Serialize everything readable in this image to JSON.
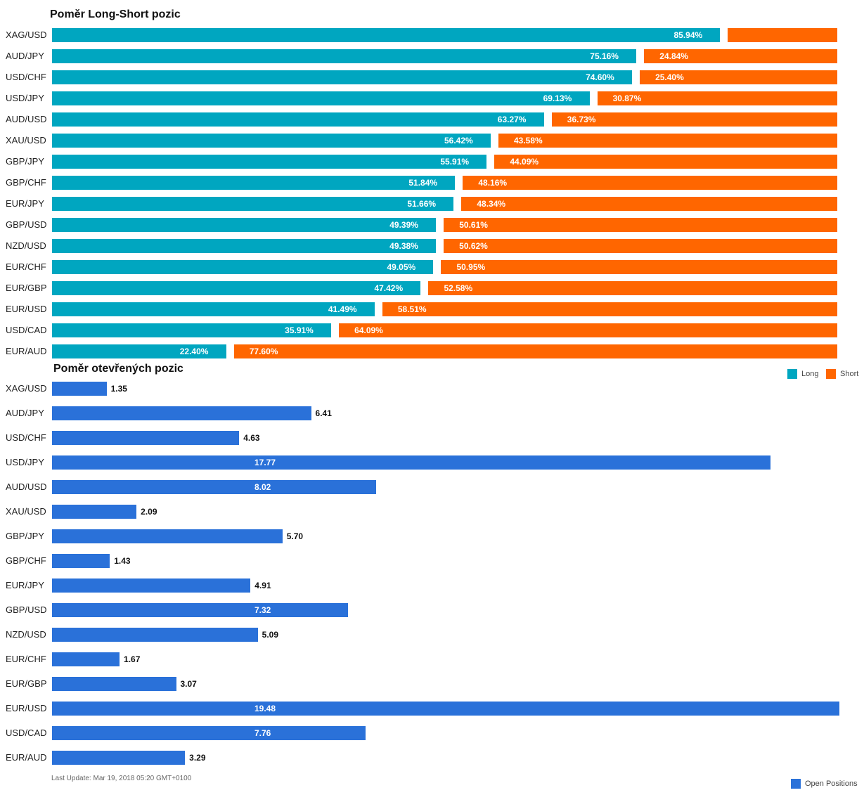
{
  "colors": {
    "long": "#00A6C0",
    "short": "#FF6600",
    "open": "#2A71D9"
  },
  "chart_data": [
    {
      "type": "bar",
      "orientation": "horizontal",
      "stacked": true,
      "title": "Poměr Long-Short pozic",
      "categories": [
        "XAG/USD",
        "AUD/JPY",
        "USD/CHF",
        "USD/JPY",
        "AUD/USD",
        "XAU/USD",
        "GBP/JPY",
        "GBP/CHF",
        "EUR/JPY",
        "GBP/USD",
        "NZD/USD",
        "EUR/CHF",
        "EUR/GBP",
        "EUR/USD",
        "USD/CAD",
        "EUR/AUD"
      ],
      "series": [
        {
          "name": "Long",
          "values": [
            85.94,
            75.16,
            74.6,
            69.13,
            63.27,
            56.42,
            55.91,
            51.84,
            51.66,
            49.39,
            49.38,
            49.05,
            47.42,
            41.49,
            35.91,
            22.4
          ]
        },
        {
          "name": "Short",
          "values": [
            14.06,
            24.84,
            25.4,
            30.87,
            36.73,
            43.58,
            44.09,
            48.16,
            48.34,
            50.61,
            50.62,
            50.95,
            52.58,
            58.51,
            64.09,
            77.6
          ]
        }
      ],
      "value_labels": {
        "long": [
          "85.94%",
          "75.16%",
          "74.60%",
          "69.13%",
          "63.27%",
          "56.42%",
          "55.91%",
          "51.84%",
          "51.66%",
          "49.39%",
          "49.38%",
          "49.05%",
          "47.42%",
          "41.49%",
          "35.91%",
          "22.40%"
        ],
        "short": [
          "",
          "24.84%",
          "25.40%",
          "30.87%",
          "36.73%",
          "43.58%",
          "44.09%",
          "48.16%",
          "48.34%",
          "50.61%",
          "50.62%",
          "50.95%",
          "52.58%",
          "58.51%",
          "64.09%",
          "77.60%"
        ]
      },
      "legend": [
        "Long",
        "Short"
      ],
      "legend_position": "bottom-right"
    },
    {
      "type": "bar",
      "orientation": "horizontal",
      "title": "Poměr otevřených pozic",
      "categories": [
        "XAG/USD",
        "AUD/JPY",
        "USD/CHF",
        "USD/JPY",
        "AUD/USD",
        "XAU/USD",
        "GBP/JPY",
        "GBP/CHF",
        "EUR/JPY",
        "GBP/USD",
        "NZD/USD",
        "EUR/CHF",
        "EUR/GBP",
        "EUR/USD",
        "USD/CAD",
        "EUR/AUD"
      ],
      "series": [
        {
          "name": "Open Positions",
          "values": [
            1.35,
            6.41,
            4.63,
            17.77,
            8.02,
            2.09,
            5.7,
            1.43,
            4.91,
            7.32,
            5.09,
            1.67,
            3.07,
            19.48,
            7.76,
            3.29
          ]
        }
      ],
      "value_labels": [
        "1.35",
        "6.41",
        "4.63",
        "17.77",
        "8.02",
        "2.09",
        "5.70",
        "1.43",
        "4.91",
        "7.32",
        "5.09",
        "1.67",
        "3.07",
        "19.48",
        "7.76",
        "3.29"
      ],
      "xlim": [
        0,
        19.48
      ],
      "legend": [
        "Open Positions"
      ],
      "legend_position": "bottom-right"
    }
  ],
  "footer": {
    "last_update": "Last Update: Mar 19, 2018 05:20 GMT+0100"
  }
}
